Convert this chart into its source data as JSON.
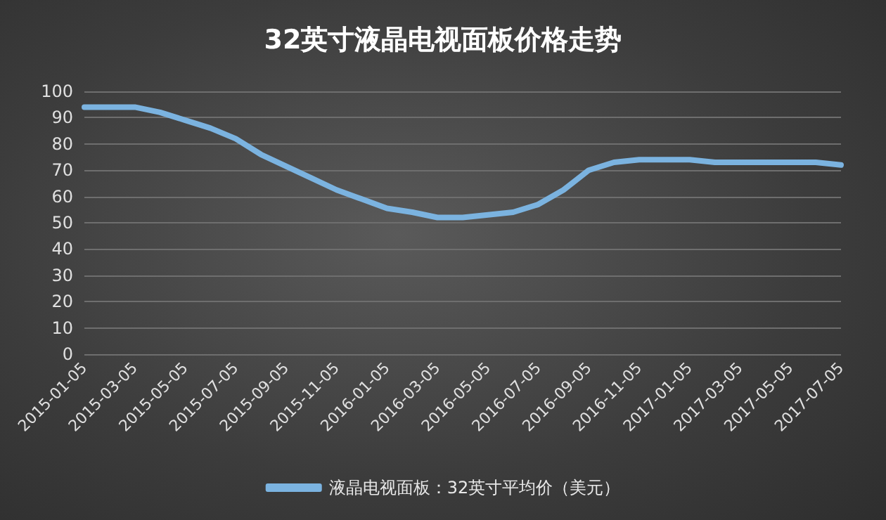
{
  "chart_data": {
    "type": "line",
    "title": "32英寸液晶电视面板价格走势",
    "categories": [
      "2015-01-05",
      null,
      "2015-03-05",
      null,
      "2015-05-05",
      null,
      "2015-07-05",
      null,
      "2015-09-05",
      null,
      "2015-11-05",
      null,
      "2016-01-05",
      null,
      "2016-03-05",
      null,
      "2016-05-05",
      null,
      "2016-07-05",
      null,
      "2016-09-05",
      null,
      "2016-11-05",
      null,
      "2017-01-05",
      null,
      "2017-03-05",
      null,
      "2017-05-05",
      null,
      "2017-07-05"
    ],
    "series": [
      {
        "name": "液晶电视面板：32英寸平均价（美元）",
        "color": "#7bb3e0",
        "values": [
          94,
          94,
          94,
          92,
          89,
          86,
          82,
          76,
          71.5,
          67,
          62.5,
          59,
          55.5,
          54,
          52,
          52,
          53,
          54,
          57,
          62.5,
          70,
          73,
          74,
          74,
          74,
          73,
          73,
          73,
          73,
          73,
          72
        ]
      }
    ],
    "ylim": [
      0,
      100
    ],
    "yticks": [
      0,
      10,
      20,
      30,
      40,
      50,
      60,
      70,
      80,
      90,
      100
    ],
    "grid": "y",
    "legend": "bottom",
    "marker": "none",
    "line_style": "solid"
  }
}
